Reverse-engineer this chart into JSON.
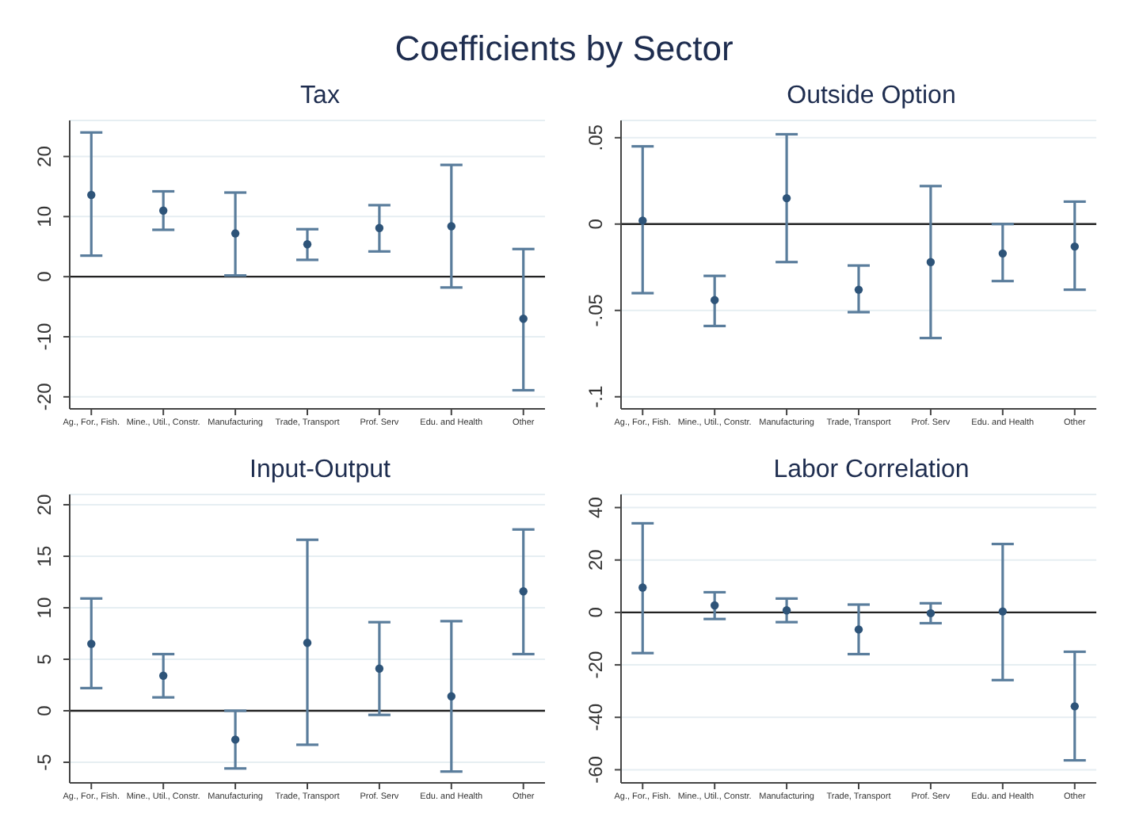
{
  "chart_data": [
    {
      "type": "scatter",
      "title": "Tax",
      "annotations": [
        "Coefficients by Sector"
      ],
      "categories": [
        "Ag., For., Fish.",
        "Mine., Util., Constr.",
        "Manufacturing",
        "Trade, Transport",
        "Prof. Serv",
        "Edu. and Health",
        "Other"
      ],
      "values": [
        13.6,
        11,
        7.2,
        5.4,
        8.1,
        8.4,
        -7
      ],
      "errors": [
        [
          3.5,
          24
        ],
        [
          7.8,
          14.2
        ],
        [
          0.2,
          14
        ],
        [
          2.8,
          7.9
        ],
        [
          4.2,
          11.9
        ],
        [
          -1.8,
          18.6
        ],
        [
          -18.9,
          4.6
        ]
      ],
      "color": "#2e5479",
      "marker": "circle",
      "grid": "y",
      "ylim": [
        -22,
        26
      ],
      "yticks": [
        -20,
        -10,
        0,
        10,
        20
      ],
      "ref_lines": [
        {
          "axis": "y",
          "value": 0
        }
      ]
    },
    {
      "type": "scatter",
      "title": "Outside Option",
      "categories": [
        "Ag., For., Fish.",
        "Mine., Util., Constr.",
        "Manufacturing",
        "Trade, Transport",
        "Prof. Serv",
        "Edu. and Health",
        "Other"
      ],
      "values": [
        0.002,
        -0.044,
        0.015,
        -0.038,
        -0.022,
        -0.017,
        -0.013
      ],
      "errors": [
        [
          -0.04,
          0.045
        ],
        [
          -0.059,
          -0.03
        ],
        [
          -0.022,
          0.052
        ],
        [
          -0.051,
          -0.024
        ],
        [
          -0.066,
          0.022
        ],
        [
          -0.033,
          0
        ],
        [
          -0.038,
          0.013
        ]
      ],
      "color": "#2e5479",
      "marker": "circle",
      "grid": "y",
      "ylim": [
        -0.107,
        0.06
      ],
      "yticks": [
        {
          "value": -0.1,
          "label": "-.1"
        },
        {
          "value": -0.05,
          "label": "-.05"
        },
        0,
        {
          "value": 0.05,
          "label": ".05"
        }
      ],
      "ref_lines": [
        {
          "axis": "y",
          "value": 0
        }
      ]
    },
    {
      "type": "scatter",
      "title": "Input-Output",
      "categories": [
        "Ag., For., Fish.",
        "Mine., Util., Constr.",
        "Manufacturing",
        "Trade, Transport",
        "Prof. Serv",
        "Edu. and Health",
        "Other"
      ],
      "values": [
        6.5,
        3.4,
        -2.8,
        6.6,
        4.1,
        1.4,
        11.6
      ],
      "errors": [
        [
          2.2,
          10.9
        ],
        [
          1.3,
          5.5
        ],
        [
          -5.6,
          0
        ],
        [
          -3.3,
          16.6
        ],
        [
          -0.4,
          8.6
        ],
        [
          -5.9,
          8.7
        ],
        [
          5.5,
          17.6
        ]
      ],
      "color": "#2e5479",
      "marker": "circle",
      "grid": "y",
      "ylim": [
        -7,
        21
      ],
      "yticks": [
        -5,
        0,
        5,
        10,
        15,
        20
      ],
      "ref_lines": [
        {
          "axis": "y",
          "value": 0
        }
      ]
    },
    {
      "type": "scatter",
      "title": "Labor Correlation",
      "categories": [
        "Ag., For., Fish.",
        "Mine., Util., Constr.",
        "Manufacturing",
        "Trade, Transport",
        "Prof. Serv",
        "Edu. and Health",
        "Other"
      ],
      "values": [
        9.5,
        2.7,
        0.8,
        -6.5,
        -0.3,
        0.4,
        -35.8
      ],
      "errors": [
        [
          -15.5,
          34
        ],
        [
          -2.5,
          7.7
        ],
        [
          -3.7,
          5.3
        ],
        [
          -15.9,
          3
        ],
        [
          -4.1,
          3.5
        ],
        [
          -25.8,
          26.1
        ],
        [
          -56.4,
          -15
        ]
      ],
      "color": "#2e5479",
      "marker": "circle",
      "grid": "y",
      "ylim": [
        -65,
        45
      ],
      "yticks": [
        -60,
        -40,
        -20,
        0,
        20,
        40
      ],
      "ref_lines": [
        {
          "axis": "y",
          "value": 0
        }
      ]
    }
  ]
}
